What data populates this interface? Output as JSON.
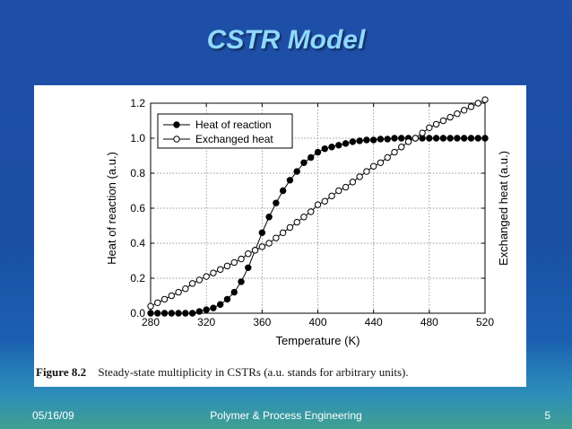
{
  "slide": {
    "title": "CSTR Model",
    "footer_date": "05/16/09",
    "footer_center": "Polymer & Process Engineering",
    "footer_page": "5"
  },
  "figure": {
    "caption_number": "Figure 8.2",
    "caption_text": "Steady-state multiplicity in CSTRs (a.u. stands for arbitrary units)."
  },
  "chart_data": {
    "type": "line",
    "xlabel": "Temperature (K)",
    "ylabel_left": "Heat of reaction (a.u.)",
    "ylabel_right": "Exchanged heat (a.u.)",
    "xlim": [
      280,
      520
    ],
    "ylim": [
      0,
      1.2
    ],
    "x_ticks": [
      "280",
      "320",
      "360",
      "400",
      "440",
      "480",
      "520"
    ],
    "y_ticks": [
      "0.0",
      "0.2",
      "0.4",
      "0.6",
      "0.8",
      "1.0",
      "1.2"
    ],
    "grid": true,
    "legend_position": "top-left",
    "x": [
      280,
      285,
      290,
      295,
      300,
      305,
      310,
      315,
      320,
      325,
      330,
      335,
      340,
      345,
      350,
      355,
      360,
      365,
      370,
      375,
      380,
      385,
      390,
      395,
      400,
      405,
      410,
      415,
      420,
      425,
      430,
      435,
      440,
      445,
      450,
      455,
      460,
      465,
      470,
      475,
      480,
      485,
      490,
      495,
      500,
      505,
      510,
      515,
      520
    ],
    "series": [
      {
        "name": "Heat of reaction",
        "marker": "filled-circle",
        "color": "#000000",
        "values": [
          0.0,
          0.0,
          0.0,
          0.0,
          0.0,
          0.0,
          0.0,
          0.01,
          0.02,
          0.03,
          0.05,
          0.08,
          0.12,
          0.18,
          0.26,
          0.36,
          0.46,
          0.55,
          0.63,
          0.7,
          0.76,
          0.81,
          0.86,
          0.89,
          0.92,
          0.94,
          0.95,
          0.96,
          0.97,
          0.98,
          0.985,
          0.99,
          0.99,
          0.995,
          0.995,
          1.0,
          1.0,
          1.0,
          1.0,
          1.0,
          1.0,
          1.0,
          1.0,
          1.0,
          1.0,
          1.0,
          1.0,
          1.0,
          1.0
        ]
      },
      {
        "name": "Exchanged heat",
        "marker": "open-circle",
        "color": "#000000",
        "values": [
          0.04,
          0.06,
          0.08,
          0.1,
          0.12,
          0.14,
          0.17,
          0.19,
          0.21,
          0.23,
          0.25,
          0.27,
          0.29,
          0.31,
          0.34,
          0.36,
          0.38,
          0.4,
          0.43,
          0.46,
          0.49,
          0.52,
          0.55,
          0.58,
          0.62,
          0.64,
          0.67,
          0.7,
          0.72,
          0.75,
          0.78,
          0.81,
          0.84,
          0.86,
          0.89,
          0.92,
          0.95,
          0.98,
          1.0,
          1.03,
          1.06,
          1.08,
          1.1,
          1.12,
          1.14,
          1.16,
          1.18,
          1.2,
          1.22
        ]
      }
    ]
  }
}
